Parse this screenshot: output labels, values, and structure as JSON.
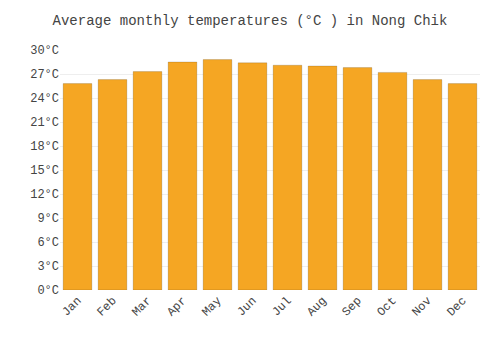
{
  "chart_data": {
    "type": "bar",
    "title": "Average monthly temperatures (°C ) in Nong Chik",
    "categories": [
      "Jan",
      "Feb",
      "Mar",
      "Apr",
      "May",
      "Jun",
      "Jul",
      "Aug",
      "Sep",
      "Oct",
      "Nov",
      "Dec"
    ],
    "values": [
      25.8,
      26.3,
      27.3,
      28.5,
      28.8,
      28.4,
      28.1,
      28.0,
      27.8,
      27.2,
      26.3,
      25.8
    ],
    "color": "#F5A623",
    "ylim": [
      0,
      30
    ],
    "yticks": [
      {
        "value": 0,
        "label": "0°C"
      },
      {
        "value": 3,
        "label": "3°C"
      },
      {
        "value": 6,
        "label": "6°C"
      },
      {
        "value": 9,
        "label": "9°C"
      },
      {
        "value": 12,
        "label": "12°C"
      },
      {
        "value": 15,
        "label": "15°C"
      },
      {
        "value": 18,
        "label": "18°C"
      },
      {
        "value": 21,
        "label": "21°C"
      },
      {
        "value": 24,
        "label": "24°C"
      },
      {
        "value": 27,
        "label": "27°C"
      },
      {
        "value": 30,
        "label": "30°C"
      }
    ],
    "grid": true
  }
}
